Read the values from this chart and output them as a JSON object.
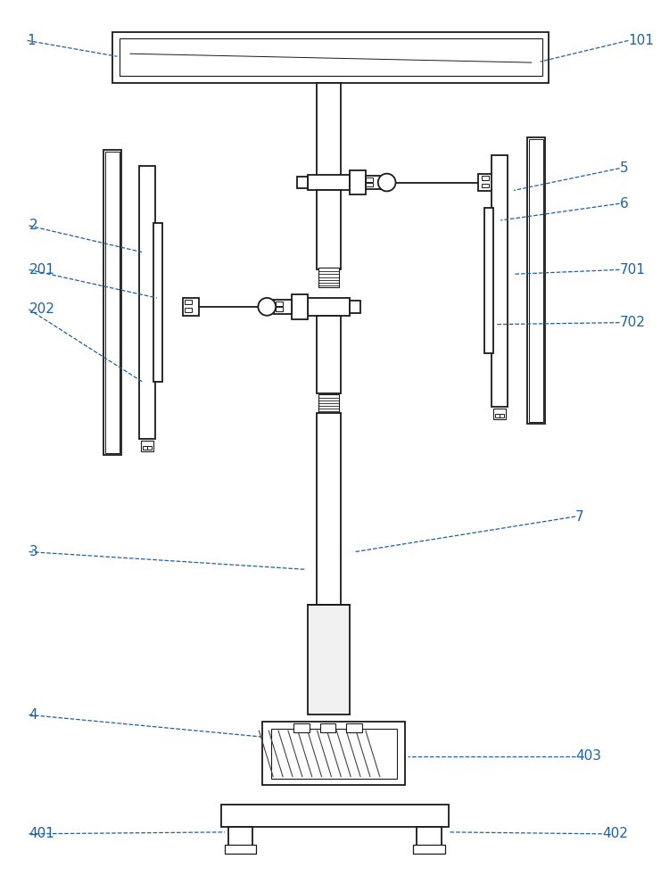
{
  "bg_color": "#ffffff",
  "line_color": "#1a1a1a",
  "label_color": "#2060a0",
  "label_fontsize": 11,
  "fig_width": 7.41,
  "fig_height": 10.0
}
